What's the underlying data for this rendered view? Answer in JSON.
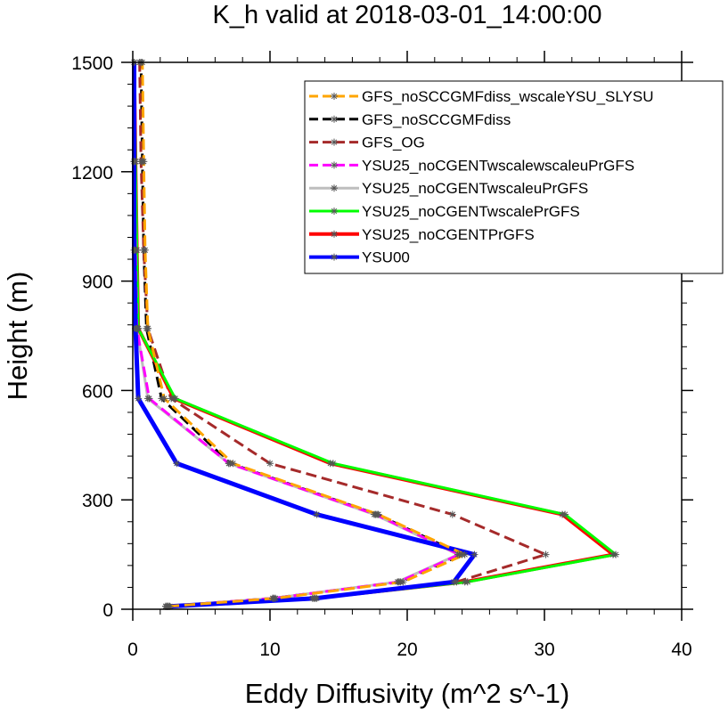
{
  "chart_data": {
    "type": "line",
    "title": "K_h valid at 2018-03-01_14:00:00",
    "xlabel": "Eddy Diffusivity (m^2 s^-1)",
    "ylabel": "Height (m)",
    "xlim": [
      0,
      40
    ],
    "ylim": [
      0,
      1500
    ],
    "xticks": [
      0,
      10,
      20,
      30,
      40
    ],
    "yticks": [
      0,
      300,
      600,
      900,
      1200,
      1500
    ],
    "xtick_labels": [
      "0",
      "10",
      "20",
      "30",
      "40"
    ],
    "ytick_labels": [
      "0",
      "300",
      "600",
      "900",
      "1200",
      "1500"
    ],
    "grid": false,
    "legend_position": "top-right",
    "heights": [
      8,
      30,
      75,
      150,
      260,
      400,
      578,
      770,
      985,
      1228,
      1500
    ],
    "series": [
      {
        "name": "GFS_noSCCGMFdiss_wscaleYSU_SLYSU",
        "color": "#ffa500",
        "dash": "dash",
        "width": 3,
        "z": 8,
        "values": [
          2.6,
          10.4,
          19.7,
          24.2,
          17.9,
          7.3,
          2.3,
          1.1,
          0.9,
          0.8,
          0.7
        ]
      },
      {
        "name": "GFS_noSCCGMFdiss",
        "color": "#000000",
        "dash": "dash",
        "width": 3,
        "z": 1,
        "values": [
          2.5,
          10.2,
          19.5,
          24.0,
          17.8,
          7.1,
          2.1,
          1.0,
          0.8,
          0.7,
          0.6
        ]
      },
      {
        "name": "GFS_OG",
        "color": "#a52a2a",
        "dash": "dash",
        "width": 3,
        "z": 2,
        "values": [
          2.6,
          13.1,
          23.6,
          30.1,
          23.3,
          10.0,
          2.8,
          1.1,
          0.8,
          0.6,
          0.5
        ]
      },
      {
        "name": "YSU25_noCGENTwscalewscaleuPrGFS",
        "color": "#ff00ff",
        "dash": "dash",
        "width": 3,
        "z": 6,
        "values": [
          2.4,
          10.3,
          19.4,
          23.8,
          17.7,
          7.0,
          1.2,
          0.3,
          0.2,
          0.1,
          0.1
        ]
      },
      {
        "name": "YSU25_noCGENTwscaleuPrGFS",
        "color": "#bebebe",
        "dash": "solid",
        "width": 3,
        "z": 3,
        "values": [
          2.4,
          10.2,
          19.3,
          23.7,
          17.6,
          7.0,
          1.1,
          0.3,
          0.2,
          0.1,
          0.1
        ]
      },
      {
        "name": "YSU25_noCGENTwscalePrGFS",
        "color": "#00ff00",
        "dash": "solid",
        "width": 3,
        "z": 5,
        "values": [
          2.6,
          13.4,
          24.4,
          35.2,
          31.5,
          14.6,
          3.1,
          0.4,
          0.3,
          0.2,
          0.1
        ]
      },
      {
        "name": "YSU25_noCGENTPrGFS",
        "color": "#ff0000",
        "dash": "solid",
        "width": 4,
        "z": 4,
        "values": [
          2.5,
          13.2,
          24.2,
          35.0,
          31.3,
          14.4,
          3.0,
          0.4,
          0.3,
          0.2,
          0.1
        ]
      },
      {
        "name": "YSU00",
        "color": "#0000ff",
        "dash": "solid",
        "width": 5,
        "z": 7,
        "values": [
          2.7,
          13.3,
          23.4,
          24.9,
          13.4,
          3.2,
          0.4,
          0.2,
          0.1,
          0.1,
          0.1
        ]
      }
    ]
  }
}
